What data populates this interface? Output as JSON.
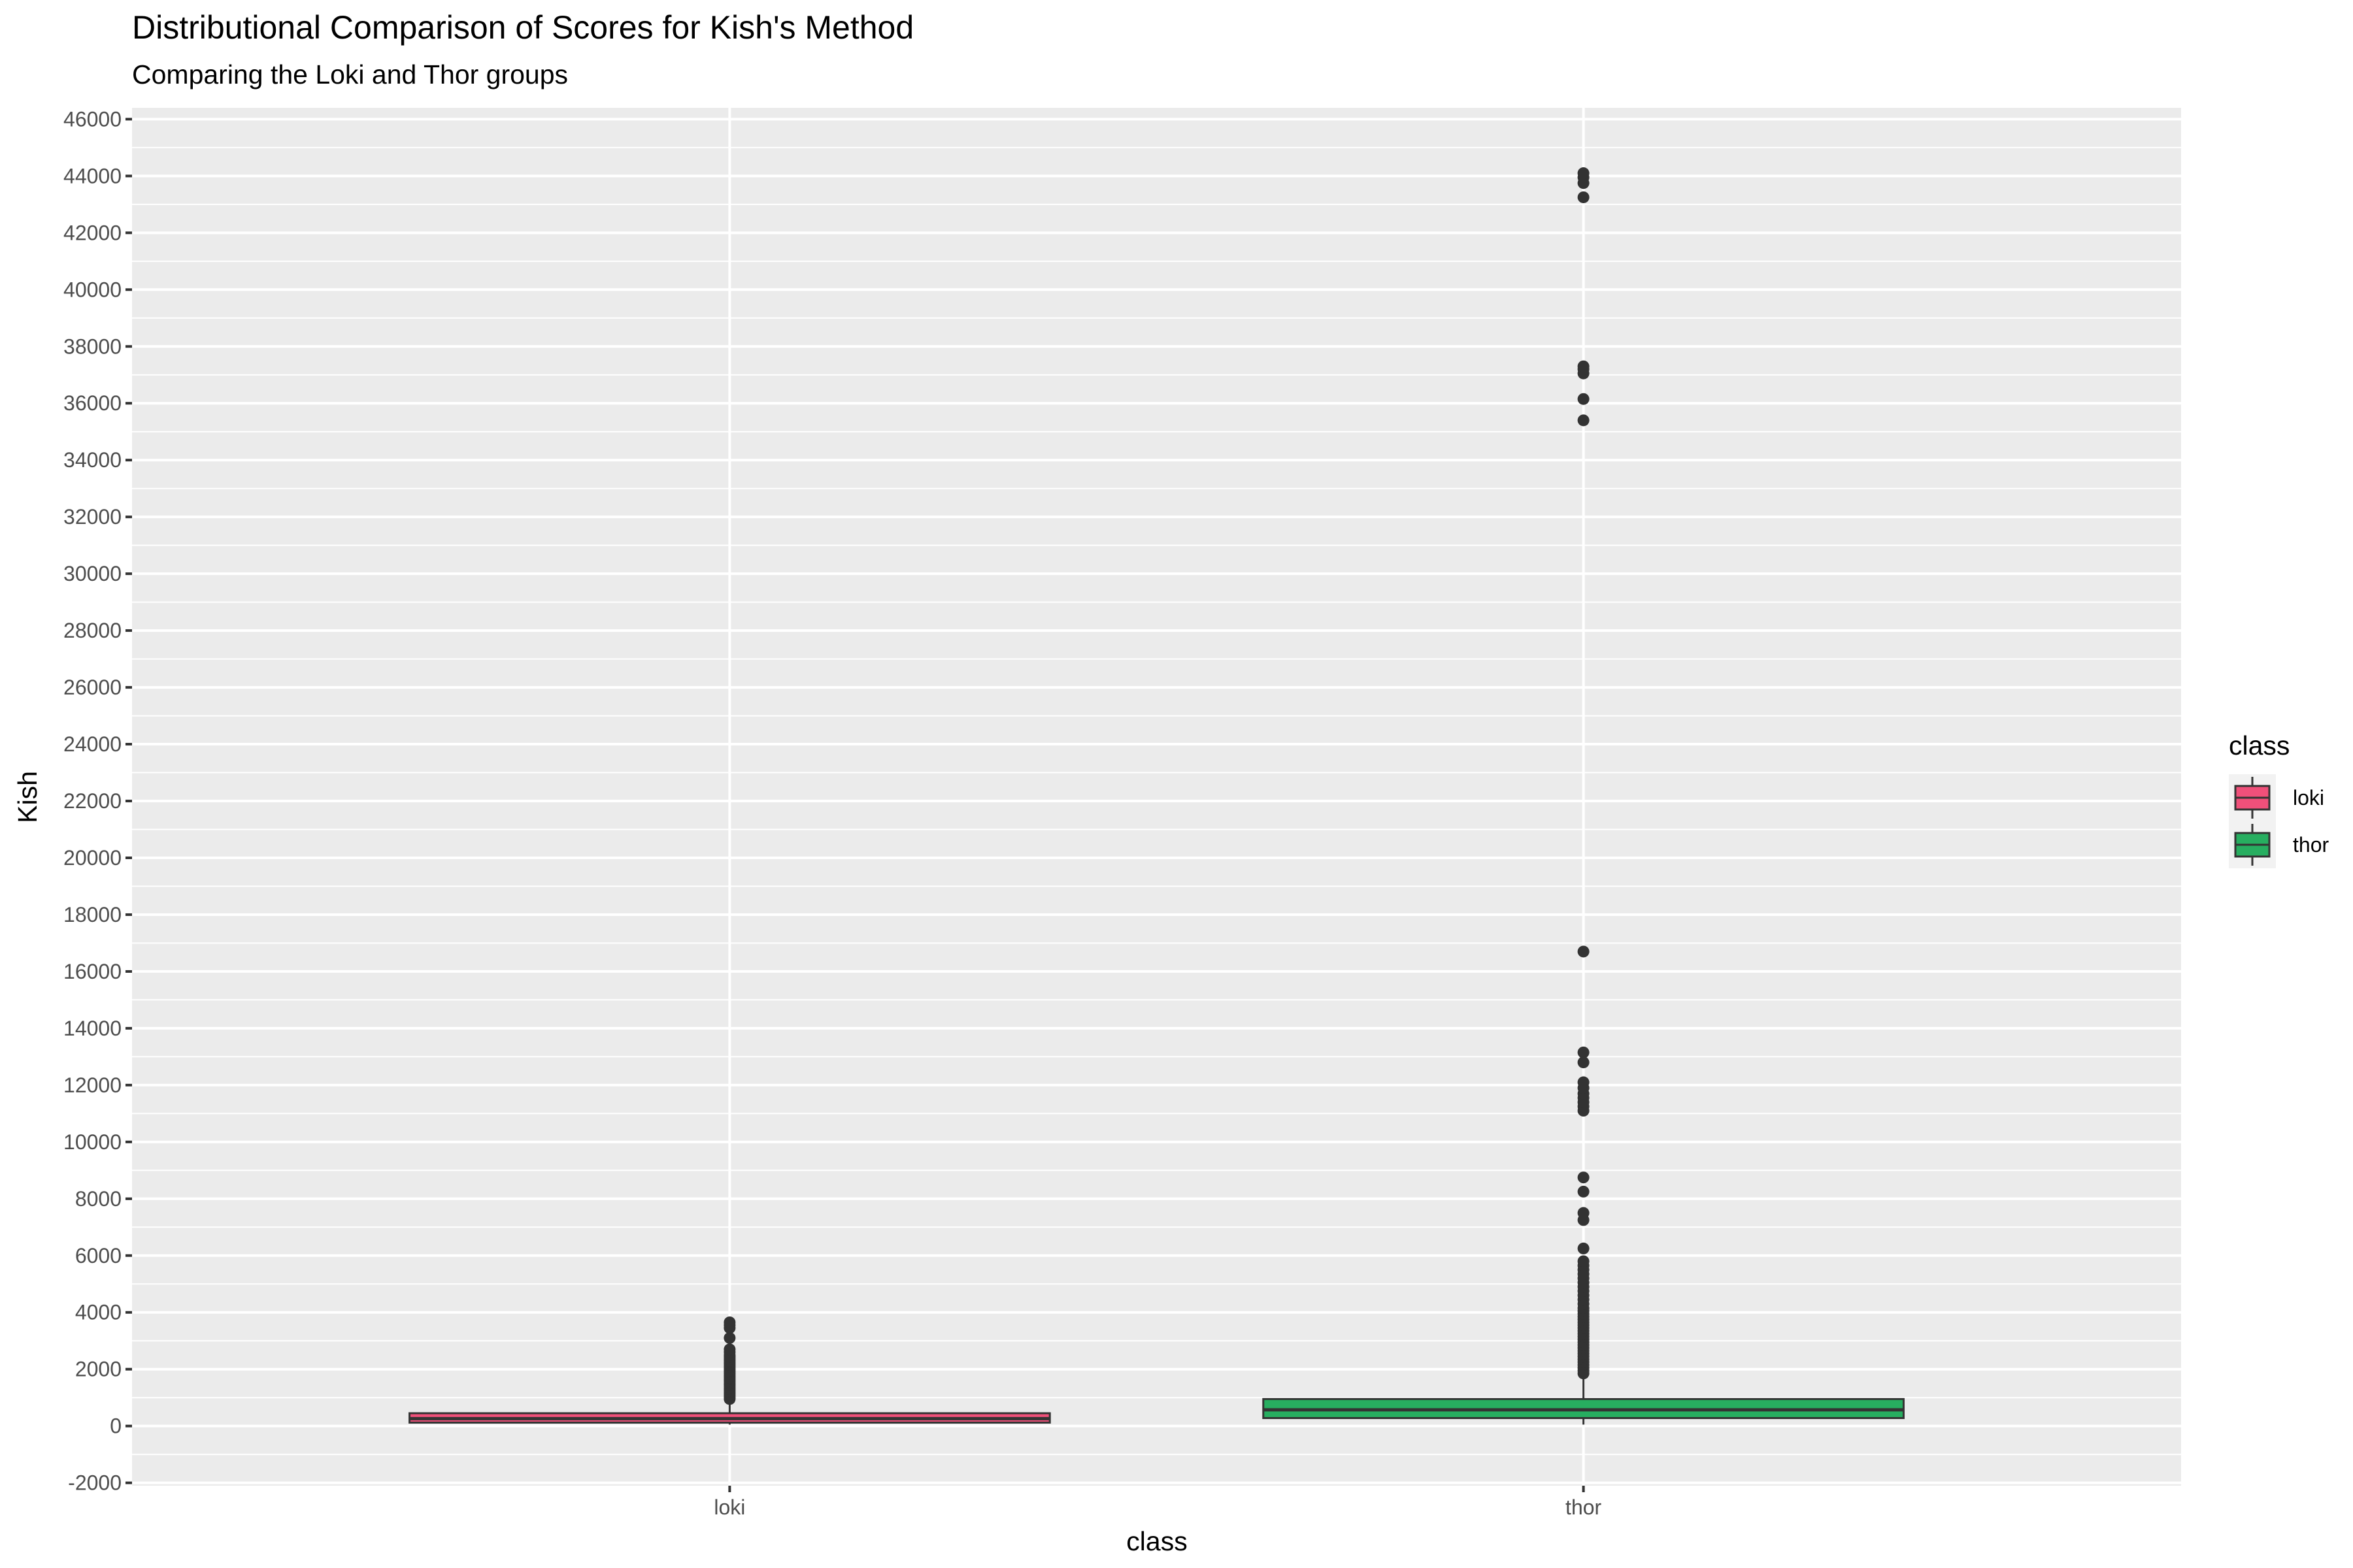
{
  "chart_data": {
    "type": "boxplot",
    "title": "Distributional Comparison of Scores for Kish's Method",
    "subtitle": "Comparing the Loki and Thor groups",
    "xlabel": "class",
    "ylabel": "Kish",
    "categories": [
      "loki",
      "thor"
    ],
    "ylim": [
      -2100,
      46400
    ],
    "y_ticks": [
      -2000,
      0,
      2000,
      4000,
      6000,
      8000,
      10000,
      12000,
      14000,
      16000,
      18000,
      20000,
      22000,
      24000,
      26000,
      28000,
      30000,
      32000,
      34000,
      36000,
      38000,
      40000,
      42000,
      44000,
      46000
    ],
    "grid": true,
    "legend": {
      "title": "class",
      "position": "right",
      "entries": [
        "loki",
        "thor"
      ]
    },
    "series": [
      {
        "category": "loki",
        "color": "#f0507a",
        "min": 50,
        "q1": 120,
        "median": 260,
        "q3": 450,
        "max": 900,
        "outliers": [
          950,
          1000,
          1050,
          1100,
          1150,
          1200,
          1250,
          1300,
          1350,
          1400,
          1450,
          1500,
          1550,
          1600,
          1650,
          1700,
          1750,
          1800,
          1850,
          1900,
          1950,
          2000,
          2050,
          2100,
          2150,
          2200,
          2250,
          2300,
          2350,
          2400,
          2450,
          2500,
          2600,
          2700,
          3100,
          3450,
          3550,
          3650
        ]
      },
      {
        "category": "thor",
        "color": "#27ae60",
        "min": 50,
        "q1": 280,
        "median": 570,
        "q3": 950,
        "max": 1950,
        "outliers": [
          1850,
          1950,
          2050,
          2150,
          2250,
          2350,
          2450,
          2550,
          2650,
          2750,
          2850,
          2950,
          3050,
          3150,
          3250,
          3350,
          3450,
          3550,
          3650,
          3750,
          3850,
          3950,
          4050,
          4150,
          4300,
          4450,
          4600,
          4750,
          4900,
          5050,
          5200,
          5350,
          5500,
          5650,
          5800,
          6250,
          7250,
          7500,
          8250,
          8750,
          11100,
          11250,
          11400,
          11550,
          11700,
          11900,
          12100,
          12800,
          13150,
          16700,
          35400,
          36150,
          37050,
          37200,
          37300,
          43250,
          43750,
          43950,
          44100
        ]
      }
    ]
  }
}
